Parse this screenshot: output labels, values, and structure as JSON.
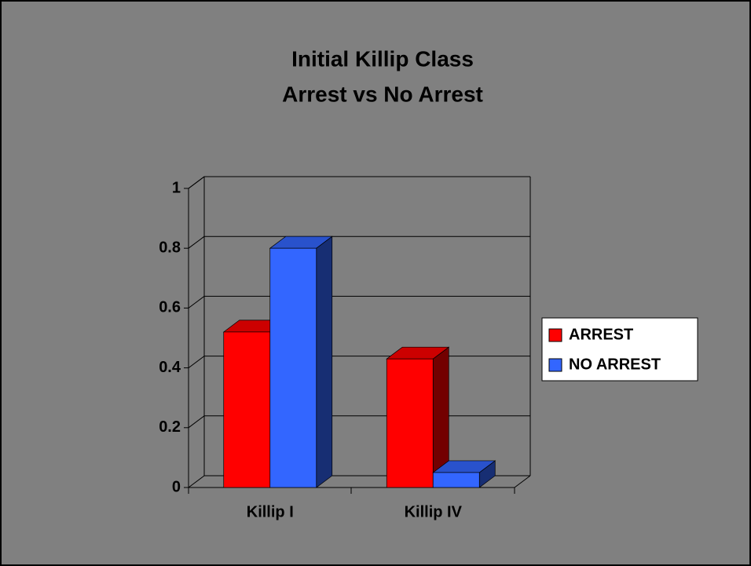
{
  "chart_data": {
    "type": "bar3d",
    "title": [
      "Initial Killip Class",
      "Arrest vs No Arrest"
    ],
    "categories": [
      "Killip I",
      "Killip IV"
    ],
    "series": [
      {
        "name": "ARREST",
        "color": "#ff0000",
        "values": [
          0.52,
          0.43
        ]
      },
      {
        "name": "NO ARREST",
        "color": "#3366ff",
        "values": [
          0.8,
          0.05
        ]
      }
    ],
    "ylim": [
      0,
      1
    ],
    "yticks": [
      0,
      0.2,
      0.4,
      0.6,
      0.8,
      1
    ],
    "grid": true,
    "legend": "right"
  }
}
